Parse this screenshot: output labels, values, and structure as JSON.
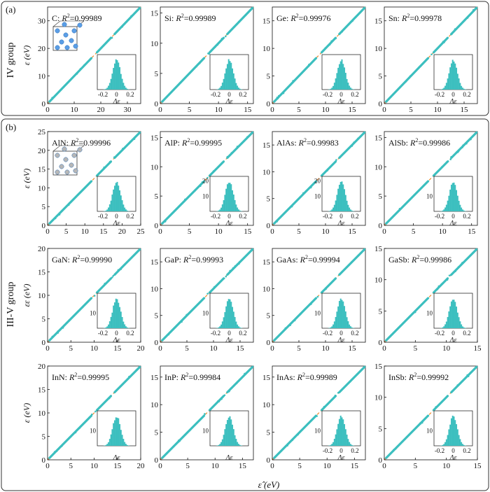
{
  "panels": [
    {
      "label": "(a)",
      "group_label": "IV group"
    },
    {
      "label": "(b)",
      "group_label": "III-V group"
    }
  ],
  "axis_texts": {
    "y_row": "ε (eV)",
    "y_row_gan": "εε (eV)",
    "x_bottom": "ε̂ (eV)",
    "inset_x": "Δε"
  },
  "colors": {
    "scatter": "#3cbfbf",
    "diagonal": "#f08a2c",
    "histogram": "#3cbfbf",
    "frame": "#222222"
  },
  "chart_data": [
    {
      "type": "scatter",
      "name": "C",
      "r2_value": "0.99989",
      "xlim": [
        0,
        35
      ],
      "ylim": [
        0,
        35
      ],
      "xticks": [
        0,
        10,
        20,
        30
      ],
      "yticks": [
        0,
        10,
        20,
        30
      ],
      "structure": "diamond-crystal",
      "inset": {
        "type": "histogram",
        "xlim": [
          -0.2,
          0.2
        ],
        "xticks": [
          "-0.2",
          "0",
          "0.2"
        ]
      }
    },
    {
      "type": "scatter",
      "name": "Si",
      "r2_value": "0.99989",
      "xlim": [
        0,
        16
      ],
      "ylim": [
        0,
        16
      ],
      "xticks": [
        0,
        5,
        10,
        15
      ],
      "yticks": [
        0,
        5,
        10,
        15
      ],
      "inset": {
        "type": "histogram",
        "xlim": [
          -0.2,
          0.2
        ],
        "xticks": [
          "-0.2",
          "0",
          "0.2"
        ]
      }
    },
    {
      "type": "scatter",
      "name": "Ge",
      "r2_value": "0.99976",
      "xlim": [
        0,
        17.5
      ],
      "ylim": [
        0,
        17.5
      ],
      "xticks": [
        0,
        5,
        10,
        15
      ],
      "yticks": [
        0,
        5,
        10,
        15
      ],
      "inset": {
        "type": "histogram",
        "xlim": [
          -0.2,
          0.2
        ],
        "xticks": [
          "-0.2",
          "0",
          "0.2"
        ]
      }
    },
    {
      "type": "scatter",
      "name": "Sn",
      "r2_value": "0.99978",
      "xlim": [
        0,
        17.5
      ],
      "ylim": [
        0,
        17.5
      ],
      "xticks": [
        0,
        5,
        10,
        15
      ],
      "yticks": [
        0,
        5,
        10,
        15
      ],
      "inset": {
        "type": "histogram",
        "xlim": [
          -0.2,
          0.2
        ],
        "xticks": [
          "-0.2",
          "0",
          "0.2"
        ]
      }
    },
    {
      "type": "scatter",
      "name": "AlN",
      "r2_value": "0.99996",
      "xlim": [
        0,
        25
      ],
      "ylim": [
        0,
        25
      ],
      "xticks": [
        0,
        5,
        10,
        15,
        20,
        25
      ],
      "yticks": [
        0,
        5,
        10,
        15,
        20,
        25
      ],
      "structure": "wurtzite-crystal",
      "inset": {
        "type": "histogram",
        "xlim": [
          -0.2,
          0.2
        ],
        "xticks": [
          "-0.2",
          "0",
          "0.2"
        ],
        "yticks": []
      }
    },
    {
      "type": "scatter",
      "name": "AlP",
      "r2_value": "0.99995",
      "xlim": [
        0,
        16
      ],
      "ylim": [
        0,
        16
      ],
      "xticks": [
        0,
        5,
        10,
        15
      ],
      "yticks": [
        0,
        5,
        10,
        15
      ],
      "inset": {
        "type": "histogram",
        "xlim": [
          -0.2,
          0.2
        ],
        "xticks": [
          "-0.2",
          "0",
          "0.2"
        ],
        "yticks": [
          "10",
          "20"
        ]
      }
    },
    {
      "type": "scatter",
      "name": "AlAs",
      "r2_value": "0.99983",
      "xlim": [
        0,
        17.5
      ],
      "ylim": [
        0,
        17.5
      ],
      "xticks": [
        0,
        5,
        10,
        15
      ],
      "yticks": [
        0,
        5,
        10,
        15
      ],
      "inset": {
        "type": "histogram",
        "xlim": [
          -0.2,
          0.2
        ],
        "xticks": [
          "-0.2",
          "0",
          "0.2"
        ],
        "yticks": [
          "10",
          "20"
        ]
      }
    },
    {
      "type": "scatter",
      "name": "AlSb",
      "r2_value": "0.99986",
      "xlim": [
        0,
        16
      ],
      "ylim": [
        0,
        16
      ],
      "xticks": [
        0,
        5,
        10,
        15
      ],
      "yticks": [
        0,
        5,
        10,
        15
      ],
      "inset": {
        "type": "histogram",
        "xlim": [
          -0.2,
          0.2
        ],
        "xticks": [
          "-0.2",
          "0",
          "0.2"
        ],
        "yticks": [
          "10"
        ]
      }
    },
    {
      "type": "scatter",
      "name": "GaN",
      "r2_value": "0.99990",
      "xlim": [
        0,
        20
      ],
      "ylim": [
        0,
        20
      ],
      "xticks": [
        0,
        5,
        10,
        15,
        20
      ],
      "yticks": [
        0,
        5,
        10,
        15,
        20
      ],
      "inset": {
        "type": "histogram",
        "xlim": [
          -0.2,
          0.2
        ],
        "xticks": [
          "-0.2",
          "0",
          "0.2"
        ],
        "yticks": [
          "10"
        ]
      }
    },
    {
      "type": "scatter",
      "name": "GaP",
      "r2_value": "0.99993",
      "xlim": [
        0,
        17.5
      ],
      "ylim": [
        0,
        17.5
      ],
      "xticks": [
        0,
        5,
        10,
        15
      ],
      "yticks": [
        0,
        5,
        10,
        15
      ],
      "inset": {
        "type": "histogram",
        "xlim": [
          -0.2,
          0.2
        ],
        "xticks": [
          "-0.2",
          "0",
          "0.2"
        ],
        "yticks": [
          "10"
        ]
      }
    },
    {
      "type": "scatter",
      "name": "GaAs",
      "r2_value": "0.99994",
      "xlim": [
        0,
        17.5
      ],
      "ylim": [
        0,
        17.5
      ],
      "xticks": [
        0,
        5,
        10,
        15
      ],
      "yticks": [
        0,
        5,
        10,
        15
      ],
      "inset": {
        "type": "histogram",
        "xlim": [
          -0.2,
          0.2
        ],
        "xticks": [
          "-0.2",
          "0",
          "0.2"
        ],
        "yticks": [
          "10"
        ]
      }
    },
    {
      "type": "scatter",
      "name": "GaSb",
      "r2_value": "0.99986",
      "xlim": [
        0,
        15
      ],
      "ylim": [
        0,
        15
      ],
      "xticks": [
        0,
        5,
        10,
        15
      ],
      "yticks": [
        0,
        5,
        10,
        15
      ],
      "inset": {
        "type": "histogram",
        "xlim": [
          -0.2,
          0.2
        ],
        "xticks": [
          "-0.2",
          "0",
          "0.2"
        ],
        "yticks": [
          "10"
        ]
      }
    },
    {
      "type": "scatter",
      "name": "InN",
      "r2_value": "0.99995",
      "xlim": [
        0,
        20
      ],
      "ylim": [
        0,
        20
      ],
      "xticks": [
        0,
        5,
        10,
        15,
        20
      ],
      "yticks": [
        0,
        5,
        10,
        15,
        20
      ],
      "inset": {
        "type": "histogram",
        "xlim": [
          -0.2,
          0.2
        ],
        "xticks": [],
        "yticks": [
          "10"
        ]
      }
    },
    {
      "type": "scatter",
      "name": "InP",
      "r2_value": "0.99984",
      "xlim": [
        0,
        17
      ],
      "ylim": [
        0,
        17
      ],
      "xticks": [
        0,
        5,
        10,
        15
      ],
      "yticks": [
        0,
        5,
        10,
        15
      ],
      "inset": {
        "type": "histogram",
        "xlim": [
          -0.2,
          0.2
        ],
        "xticks": [],
        "yticks": [
          "10"
        ]
      }
    },
    {
      "type": "scatter",
      "name": "InAs",
      "r2_value": "0.99989",
      "xlim": [
        0,
        17
      ],
      "ylim": [
        0,
        17
      ],
      "xticks": [
        0,
        5,
        10,
        15
      ],
      "yticks": [
        0,
        5,
        10,
        15
      ],
      "inset": {
        "type": "histogram",
        "xlim": [
          -0.2,
          0.2
        ],
        "xticks": [
          "-0.2",
          "0",
          "0.2"
        ],
        "yticks": [
          "10"
        ]
      }
    },
    {
      "type": "scatter",
      "name": "InSb",
      "r2_value": "0.99992",
      "xlim": [
        0,
        15
      ],
      "ylim": [
        0,
        15
      ],
      "xticks": [
        0,
        5,
        10,
        15
      ],
      "yticks": [
        0,
        5,
        10,
        15
      ],
      "inset": {
        "type": "histogram",
        "xlim": [
          -0.2,
          0.2
        ],
        "xticks": [
          "-0.2",
          "0",
          "0.2"
        ],
        "yticks": [
          "10"
        ]
      }
    }
  ]
}
